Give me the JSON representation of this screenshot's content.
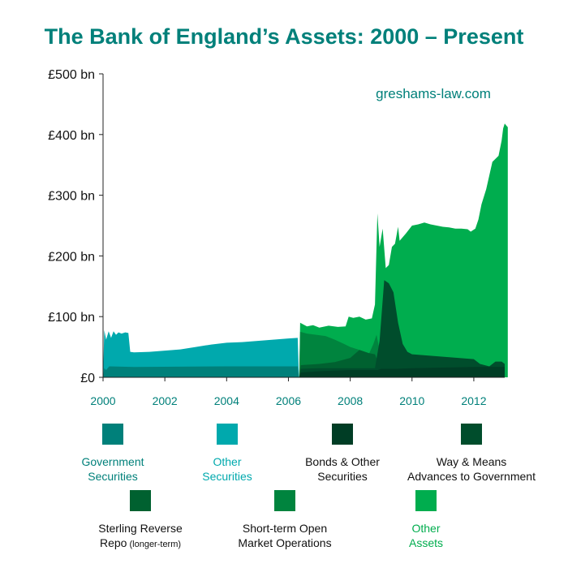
{
  "chart_data": {
    "type": "area",
    "title": "The Bank of England’s Assets: 2000 – Present",
    "watermark": "greshams-law.com",
    "ylim": [
      0,
      500
    ],
    "xlim": [
      2000,
      2013.0
    ],
    "y_ticks": [
      {
        "value": 0,
        "label": "£0"
      },
      {
        "value": 100,
        "label": "£100 bn"
      },
      {
        "value": 200,
        "label": "£200 bn"
      },
      {
        "value": 300,
        "label": "£300 bn"
      },
      {
        "value": 400,
        "label": "£400 bn"
      },
      {
        "value": 500,
        "label": "£500 bn"
      }
    ],
    "x_ticks": [
      {
        "value": 2000,
        "label": "2000"
      },
      {
        "value": 2002,
        "label": "2002"
      },
      {
        "value": 2004,
        "label": "2004"
      },
      {
        "value": 2006,
        "label": "2006"
      },
      {
        "value": 2008,
        "label": "2008"
      },
      {
        "value": 2010,
        "label": "2010"
      },
      {
        "value": 2012,
        "label": "2012"
      }
    ],
    "series": [
      {
        "name": "Government Securities",
        "color": "#00807a",
        "points": [
          [
            2000.0,
            0
          ],
          [
            2000.04,
            15
          ],
          [
            2000.1,
            12
          ],
          [
            2000.2,
            18
          ],
          [
            2001.0,
            17
          ],
          [
            2004.0,
            18
          ],
          [
            2006.3,
            18
          ],
          [
            2006.34,
            0
          ]
        ]
      },
      {
        "name": "Other Securities",
        "color": "#00a9ad",
        "points": [
          [
            2000.0,
            0
          ],
          [
            2000.04,
            78
          ],
          [
            2000.1,
            62
          ],
          [
            2000.18,
            76
          ],
          [
            2000.26,
            65
          ],
          [
            2000.34,
            76
          ],
          [
            2000.42,
            70
          ],
          [
            2000.5,
            74
          ],
          [
            2000.6,
            72
          ],
          [
            2000.72,
            74
          ],
          [
            2000.82,
            73
          ],
          [
            2000.88,
            42
          ],
          [
            2001.0,
            41
          ],
          [
            2001.5,
            42
          ],
          [
            2002.0,
            44
          ],
          [
            2002.5,
            46
          ],
          [
            2003.0,
            50
          ],
          [
            2003.5,
            54
          ],
          [
            2004.0,
            57
          ],
          [
            2004.5,
            58
          ],
          [
            2005.0,
            60
          ],
          [
            2005.5,
            62
          ],
          [
            2006.0,
            64
          ],
          [
            2006.3,
            65
          ],
          [
            2006.34,
            0
          ]
        ]
      },
      {
        "name": "Bonds & Other\nSecurities",
        "color": "#003d25",
        "points": [
          [
            2006.35,
            0
          ],
          [
            2006.4,
            8
          ],
          [
            2007.0,
            10
          ],
          [
            2008.0,
            12
          ],
          [
            2008.9,
            12
          ],
          [
            2009.0,
            14
          ],
          [
            2009.5,
            14
          ],
          [
            2010.0,
            15
          ],
          [
            2011.0,
            16
          ],
          [
            2012.0,
            17
          ],
          [
            2012.6,
            17
          ],
          [
            2013.0,
            17
          ]
        ]
      },
      {
        "name": "Way & Means\nAdvances to Government",
        "color": "#004d2c",
        "points": [
          [
            2006.35,
            0
          ],
          [
            2006.4,
            14
          ],
          [
            2007.0,
            15
          ],
          [
            2008.0,
            15
          ],
          [
            2008.8,
            15
          ],
          [
            2008.95,
            60
          ],
          [
            2009.1,
            160
          ],
          [
            2009.25,
            155
          ],
          [
            2009.4,
            140
          ],
          [
            2009.55,
            90
          ],
          [
            2009.7,
            55
          ],
          [
            2009.85,
            42
          ],
          [
            2010.0,
            38
          ],
          [
            2010.5,
            36
          ],
          [
            2011.0,
            34
          ],
          [
            2011.5,
            32
          ],
          [
            2012.0,
            30
          ],
          [
            2012.2,
            22
          ],
          [
            2012.5,
            18
          ],
          [
            2012.7,
            26
          ],
          [
            2012.9,
            26
          ],
          [
            2013.0,
            22
          ]
        ]
      },
      {
        "name": "Sterling Reverse\nRepo",
        "note": "(longer-term)",
        "color": "#006130",
        "points": [
          [
            2006.35,
            0
          ],
          [
            2006.4,
            20
          ],
          [
            2007.0,
            22
          ],
          [
            2007.5,
            25
          ],
          [
            2008.0,
            32
          ],
          [
            2008.3,
            45
          ],
          [
            2008.6,
            40
          ],
          [
            2008.8,
            38
          ],
          [
            2008.9,
            25
          ],
          [
            2009.0,
            20
          ],
          [
            2010.0,
            15
          ],
          [
            2013.0,
            15
          ]
        ]
      },
      {
        "name": "Short-term Open\nMarket Operations",
        "color": "#00843e",
        "points": [
          [
            2006.35,
            0
          ],
          [
            2006.38,
            75
          ],
          [
            2006.6,
            72
          ],
          [
            2006.9,
            70
          ],
          [
            2007.2,
            68
          ],
          [
            2007.5,
            62
          ],
          [
            2007.8,
            55
          ],
          [
            2008.0,
            50
          ],
          [
            2008.3,
            45
          ],
          [
            2008.6,
            38
          ],
          [
            2008.75,
            55
          ],
          [
            2008.85,
            70
          ],
          [
            2008.95,
            45
          ],
          [
            2009.1,
            25
          ],
          [
            2009.2,
            20
          ],
          [
            2009.5,
            10
          ],
          [
            2010.0,
            5
          ],
          [
            2010.5,
            2
          ],
          [
            2011.0,
            2
          ],
          [
            2013.0,
            2
          ]
        ]
      },
      {
        "name": "Other\nAssets",
        "color": "#00ad4e",
        "points": [
          [
            2006.35,
            0
          ],
          [
            2006.38,
            90
          ],
          [
            2006.6,
            84
          ],
          [
            2006.8,
            86
          ],
          [
            2007.0,
            82
          ],
          [
            2007.3,
            85
          ],
          [
            2007.6,
            83
          ],
          [
            2007.85,
            84
          ],
          [
            2007.95,
            100
          ],
          [
            2008.1,
            98
          ],
          [
            2008.3,
            100
          ],
          [
            2008.5,
            95
          ],
          [
            2008.7,
            97
          ],
          [
            2008.8,
            120
          ],
          [
            2008.88,
            270
          ],
          [
            2008.95,
            215
          ],
          [
            2009.05,
            245
          ],
          [
            2009.15,
            180
          ],
          [
            2009.25,
            185
          ],
          [
            2009.35,
            215
          ],
          [
            2009.45,
            220
          ],
          [
            2009.55,
            248
          ],
          [
            2009.6,
            225
          ],
          [
            2009.8,
            237
          ],
          [
            2010.0,
            250
          ],
          [
            2010.2,
            252
          ],
          [
            2010.4,
            255
          ],
          [
            2010.6,
            252
          ],
          [
            2010.8,
            250
          ],
          [
            2011.0,
            248
          ],
          [
            2011.2,
            247
          ],
          [
            2011.4,
            245
          ],
          [
            2011.6,
            245
          ],
          [
            2011.8,
            244
          ],
          [
            2011.9,
            240
          ],
          [
            2012.05,
            245
          ],
          [
            2012.15,
            260
          ],
          [
            2012.25,
            285
          ],
          [
            2012.4,
            310
          ],
          [
            2012.6,
            355
          ],
          [
            2012.8,
            365
          ],
          [
            2012.9,
            390
          ],
          [
            2012.95,
            410
          ],
          [
            2013.0,
            418
          ],
          [
            2013.05,
            415
          ],
          [
            2013.1,
            412
          ]
        ]
      }
    ]
  }
}
